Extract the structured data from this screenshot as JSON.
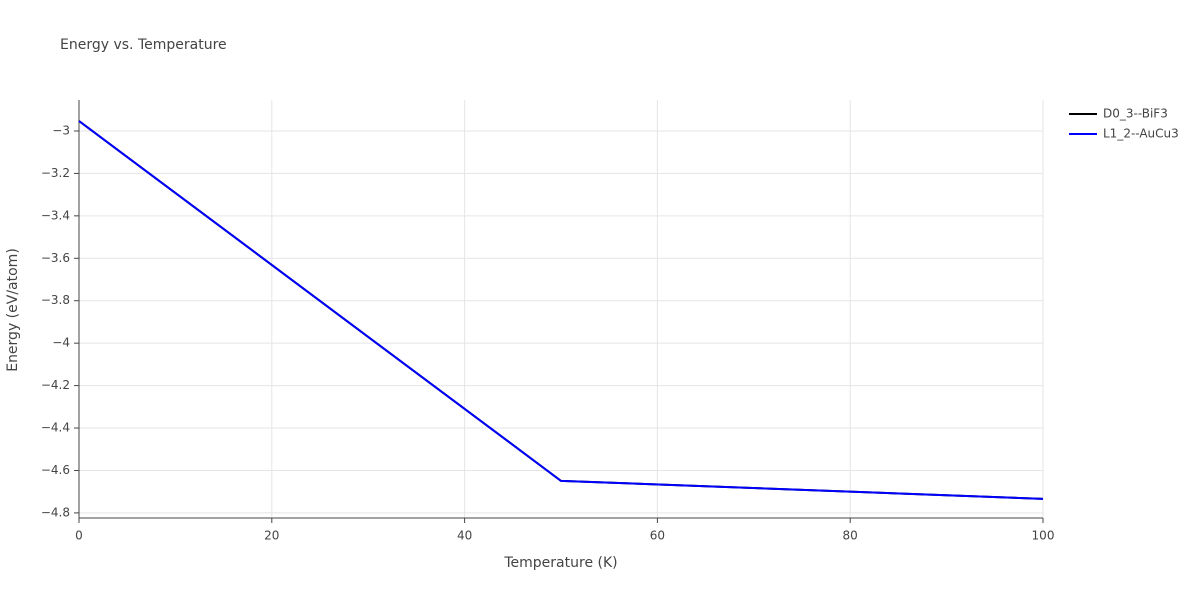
{
  "chart_data": {
    "type": "line",
    "title": "Energy vs. Temperature",
    "x_label": "Temperature (K)",
    "y_label": "Energy (eV/atom)",
    "x": [
      0,
      50,
      100
    ],
    "series": [
      {
        "name": "D0_3--BiF3",
        "color": "#000000",
        "values": [
          -2.953,
          -4.649,
          -4.734
        ]
      },
      {
        "name": "L1_2--AuCu3",
        "color": "#0000ff",
        "values": [
          -2.953,
          -4.649,
          -4.734
        ]
      }
    ],
    "xlim": [
      0,
      100
    ],
    "xticks": [
      0,
      20,
      40,
      60,
      80,
      100
    ],
    "ylim": [
      -4.824,
      -2.854
    ],
    "yticks": [
      {
        "value": -3,
        "label": "−3"
      },
      {
        "value": -3.2,
        "label": "−3.2"
      },
      {
        "value": -3.4,
        "label": "−3.4"
      },
      {
        "value": -3.6,
        "label": "−3.6"
      },
      {
        "value": -3.8,
        "label": "−3.8"
      },
      {
        "value": -4,
        "label": "−4"
      },
      {
        "value": -4.2,
        "label": "−4.2"
      },
      {
        "value": -4.4,
        "label": "−4.4"
      },
      {
        "value": -4.6,
        "label": "−4.6"
      },
      {
        "value": -4.8,
        "label": "−4.8"
      }
    ],
    "grid": true,
    "legend": "right"
  }
}
